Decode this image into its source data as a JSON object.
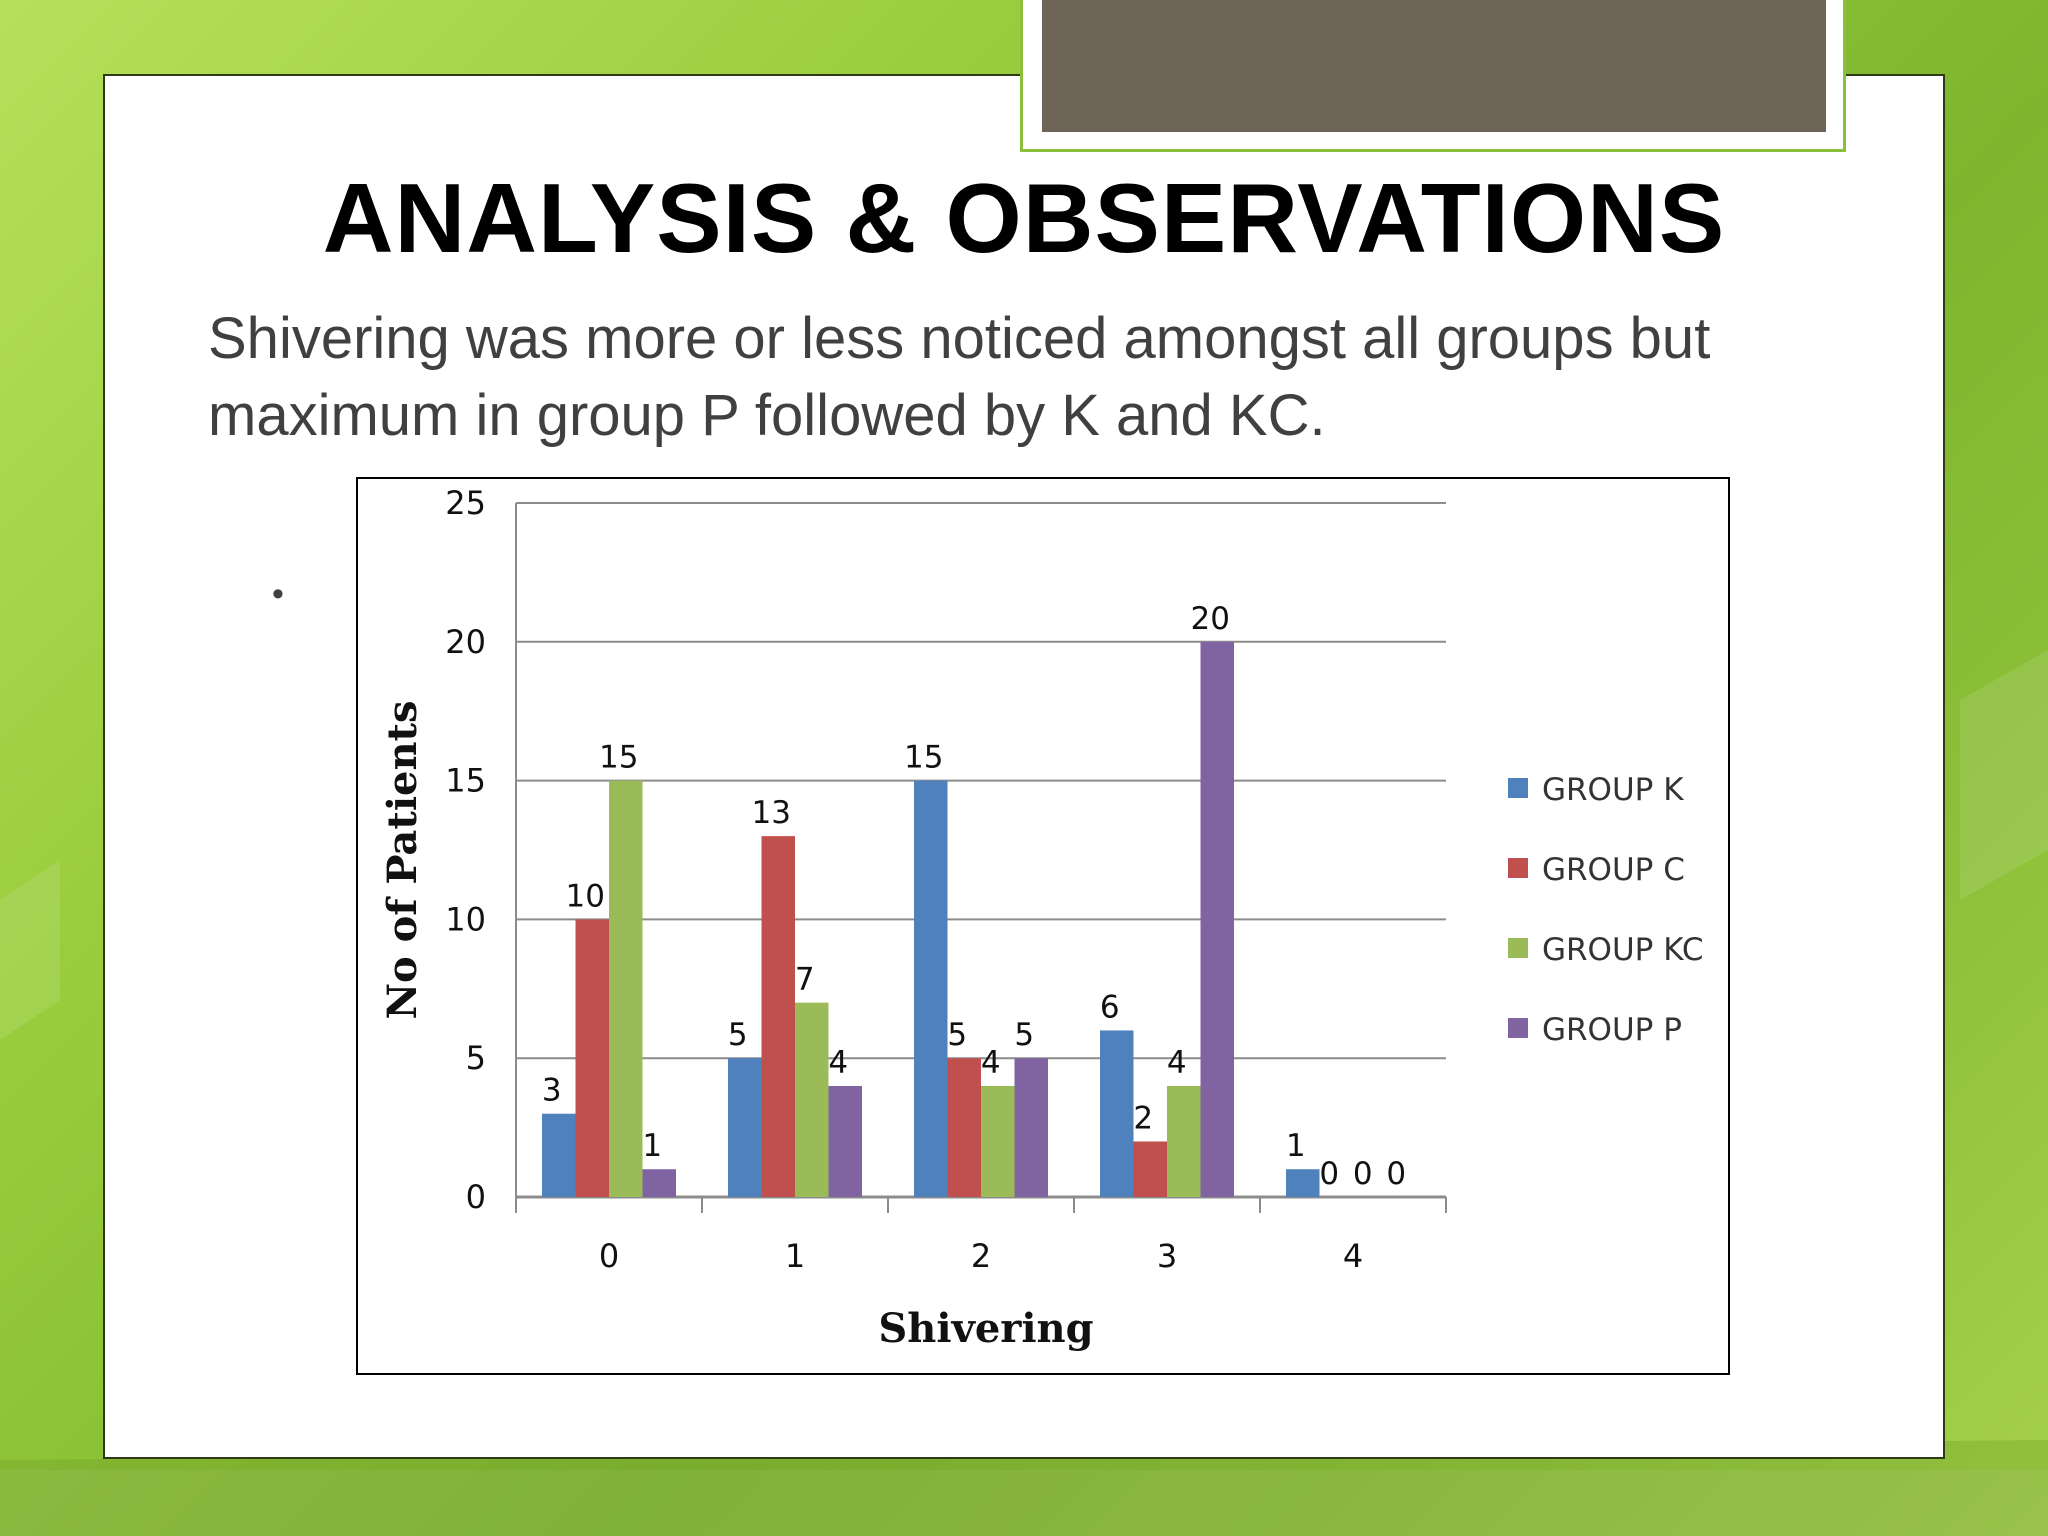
{
  "slide": {
    "title": "ANALYSIS & OBSERVATIONS",
    "body": "Shivering was more or less noticed amongst all groups but maximum in group P followed by K and KC.",
    "bullet": "•"
  },
  "chart_data": {
    "type": "bar",
    "title": "",
    "xlabel": "Shivering",
    "ylabel": "No of Patients",
    "categories": [
      "0",
      "1",
      "2",
      "3",
      "4"
    ],
    "series": [
      {
        "name": "GROUP K",
        "color": "#4f81bd",
        "values": [
          3,
          5,
          15,
          6,
          1
        ]
      },
      {
        "name": "GROUP C",
        "color": "#c0504d",
        "values": [
          10,
          13,
          5,
          2,
          0
        ]
      },
      {
        "name": "GROUP KC",
        "color": "#9bbb59",
        "values": [
          15,
          7,
          4,
          4,
          0
        ]
      },
      {
        "name": "GROUP P",
        "color": "#8064a2",
        "values": [
          1,
          4,
          5,
          20,
          0
        ]
      }
    ],
    "ylim": [
      0,
      25
    ],
    "yticks": [
      0,
      5,
      10,
      15,
      20,
      25
    ],
    "grid": true,
    "legend": "right"
  }
}
